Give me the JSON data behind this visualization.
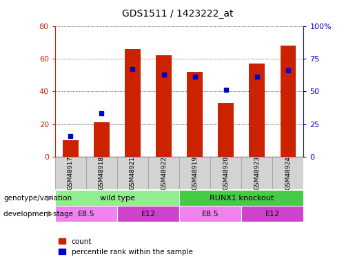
{
  "title": "GDS1511 / 1423222_at",
  "samples": [
    "GSM48917",
    "GSM48918",
    "GSM48921",
    "GSM48922",
    "GSM48919",
    "GSM48920",
    "GSM48923",
    "GSM48924"
  ],
  "count_values": [
    10,
    21,
    66,
    62,
    52,
    33,
    57,
    68
  ],
  "percentile_values": [
    16,
    33,
    67,
    63,
    61,
    51,
    61,
    66
  ],
  "red_color": "#CC2200",
  "blue_color": "#0000CC",
  "bar_width": 0.5,
  "ylim_left": [
    0,
    80
  ],
  "ylim_right": [
    0,
    100
  ],
  "yticks_left": [
    0,
    20,
    40,
    60,
    80
  ],
  "ytick_labels_left": [
    "0",
    "20",
    "40",
    "60",
    "80"
  ],
  "yticks_right": [
    0,
    25,
    50,
    75,
    100
  ],
  "ytick_labels_right": [
    "0",
    "25",
    "50",
    "75",
    "100%"
  ],
  "groups": [
    {
      "label": "wild type",
      "start": 0,
      "end": 4,
      "color": "#90EE90"
    },
    {
      "label": "RUNX1 knockout",
      "start": 4,
      "end": 8,
      "color": "#44CC44"
    }
  ],
  "stages": [
    {
      "label": "E8.5",
      "start": 0,
      "end": 2,
      "color": "#EE82EE"
    },
    {
      "label": "E12",
      "start": 2,
      "end": 4,
      "color": "#CC44CC"
    },
    {
      "label": "E8.5",
      "start": 4,
      "end": 6,
      "color": "#EE82EE"
    },
    {
      "label": "E12",
      "start": 6,
      "end": 8,
      "color": "#CC44CC"
    }
  ],
  "row_labels": [
    "genotype/variation",
    "development stage"
  ],
  "legend_count_label": "count",
  "legend_percentile_label": "percentile rank within the sample",
  "plot_bg_color": "#FFFFFF",
  "fig_bg_color": "#FFFFFF",
  "axis_label_color_left": "#CC2200",
  "axis_label_color_right": "#0000CC",
  "sample_box_color": "#D3D3D3",
  "sample_box_border": "#999999"
}
